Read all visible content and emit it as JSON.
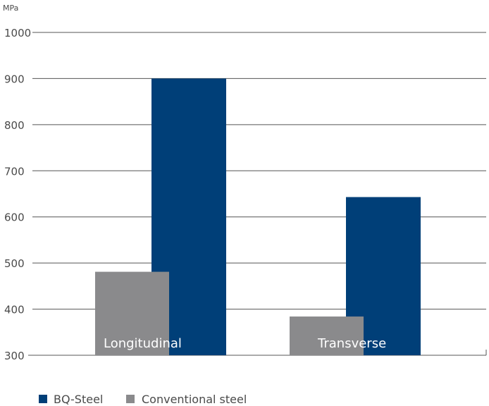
{
  "colors": {
    "bq_steel": "#003f78",
    "conventional": "#8a8a8c",
    "grid": "#555555",
    "text": "#4a4a4a"
  },
  "chart_data": {
    "type": "bar",
    "ylabel": "MPa",
    "ylim": [
      300,
      1000
    ],
    "yticks": [
      1000,
      900,
      800,
      700,
      600,
      500,
      400,
      300
    ],
    "grid": true,
    "legend_position": "bottom-left",
    "categories": [
      "Longitudinal",
      "Transverse"
    ],
    "series": [
      {
        "name": "BQ-Steel",
        "values": [
          900,
          643
        ]
      },
      {
        "name": "Conventional steel",
        "values": [
          481,
          384
        ]
      }
    ]
  }
}
